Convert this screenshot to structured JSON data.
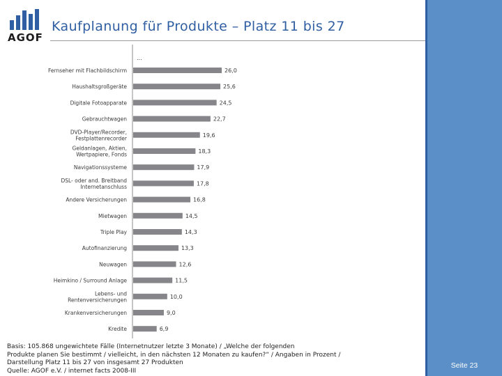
{
  "header": {
    "logo_text": "AGOF",
    "title": "Kaufplanung für Produkte – Platz 11 bis 27"
  },
  "chart_data": {
    "type": "bar",
    "orientation": "horizontal",
    "axis_marker": "...",
    "categories": [
      [
        "Fernseher mit Flachbildschirm"
      ],
      [
        "Haushaltsgroßgeräte"
      ],
      [
        "Digitale Fotoapparate"
      ],
      [
        "Gebrauchtwagen"
      ],
      [
        "DVD-Player/Recorder,",
        "Festplattenrecorder"
      ],
      [
        "Geldanlagen, Aktien,",
        "Wertpapiere, Fonds"
      ],
      [
        "Navigationssysteme"
      ],
      [
        "DSL- oder and. Breitband",
        "Internetanschluss"
      ],
      [
        "Andere Versicherungen"
      ],
      [
        "Mietwagen"
      ],
      [
        "Triple Play"
      ],
      [
        "Autofinanzierung"
      ],
      [
        "Neuwagen"
      ],
      [
        "Heimkino / Surround Anlage"
      ],
      [
        "Lebens- und",
        "Rentenversicherungen"
      ],
      [
        "Krankenversicherungen"
      ],
      [
        "Kredite"
      ]
    ],
    "values": [
      26.0,
      25.6,
      24.5,
      22.7,
      19.6,
      18.3,
      17.9,
      17.8,
      16.8,
      14.5,
      14.3,
      13.3,
      12.6,
      11.5,
      10.0,
      9.0,
      6.9
    ],
    "value_labels": [
      "26,0",
      "25,6",
      "24,5",
      "22,7",
      "19,6",
      "18,3",
      "17,9",
      "17,8",
      "16,8",
      "14,5",
      "14,3",
      "13,3",
      "12,6",
      "11,5",
      "10,0",
      "9,0",
      "6,9"
    ],
    "xlim": [
      0,
      26.0
    ],
    "bar_color": "#86868a",
    "grid": false,
    "legend": "none"
  },
  "footnote": {
    "lines": [
      "Basis: 105.868 ungewichtete Fälle (Internetnutzer letzte 3 Monate) / „Welche der folgenden",
      "Produkte planen Sie bestimmt / vielleicht, in den nächsten 12 Monaten zu kaufen?“ / Angaben in Prozent /",
      "Darstellung Platz 11 bis 27 von insgesamt 27 Produkten",
      "Quelle: AGOF e.V. / internet facts 2008-III"
    ]
  },
  "sidebar": {
    "page_label": "Seite 23",
    "band_color": "#5b8fc7",
    "accent_color": "#2f5fa2"
  }
}
